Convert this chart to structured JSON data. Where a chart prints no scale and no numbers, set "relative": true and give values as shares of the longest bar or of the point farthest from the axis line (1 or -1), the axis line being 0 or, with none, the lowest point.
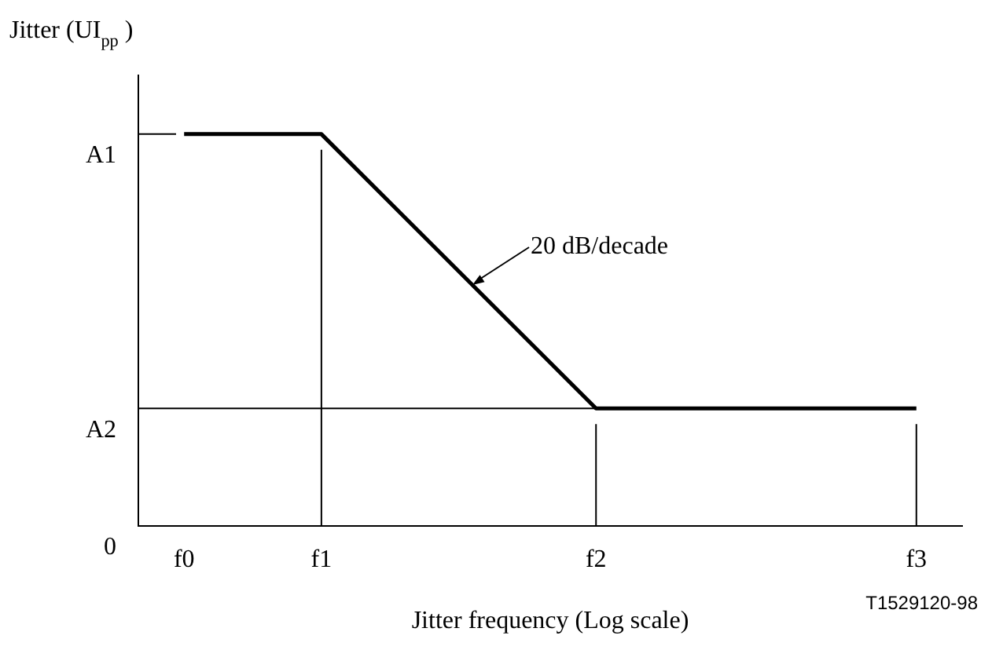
{
  "chart_data": {
    "type": "line",
    "relative": true,
    "ylabel": "Jitter (UI$_{pp}$ )",
    "xlabel": "Jitter frequency (Log scale)",
    "categories": [
      null,
      "f0",
      null,
      null,
      "f1",
      null,
      null,
      null,
      null,
      null,
      "f2",
      null,
      null,
      null,
      null,
      null,
      null,
      "f3",
      null
    ],
    "series": [
      {
        "color": "#000000",
        "x": [
          "f0",
          "f1",
          "f2",
          "f3"
        ],
        "values": [
          1,
          1,
          0.3,
          0.3
        ]
      },
      {
        "type": "line",
        "color": "#000000",
        "values": [
          0.3,
          0.3,
          0.3,
          0.3,
          0.3,
          0.3,
          0.3,
          0.3,
          0.3,
          0.3,
          0.3,
          null,
          null,
          null,
          null,
          null,
          null,
          null,
          null
        ]
      },
      {
        "type": "line",
        "color": "#000000",
        "x": [
          "f1",
          "f1"
        ],
        "values": [
          0,
          0.96
        ]
      },
      {
        "type": "line",
        "color": "#000000",
        "x": [
          "f2",
          "f2"
        ],
        "values": [
          0,
          0.26
        ]
      },
      {
        "type": "line",
        "color": "#000000",
        "x": [
          "f3",
          "f3"
        ],
        "values": [
          0,
          0.26
        ]
      }
    ],
    "annotations": [
      "20 dB/decade",
      "A1",
      "A2",
      "0",
      "T1529120-98"
    ],
    "grid": false,
    "legend": false,
    "marker": "none",
    "line_style": "solid"
  }
}
